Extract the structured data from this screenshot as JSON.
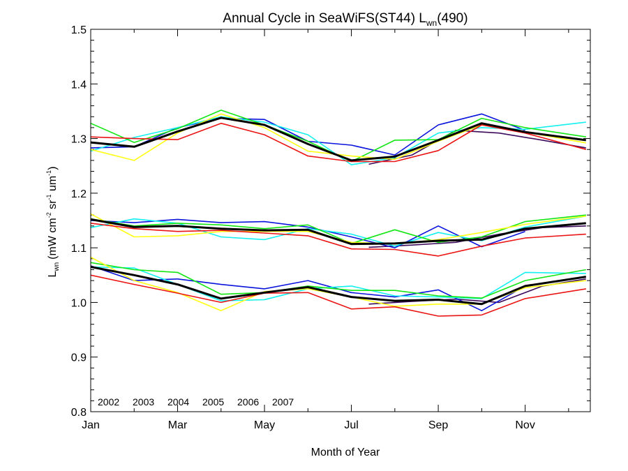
{
  "chart_data": {
    "type": "line",
    "title": {
      "main": "Annual Cycle in SeaWiFS(ST44) L",
      "sub": "wn",
      "tail": "(490)"
    },
    "xlabel": "Month of Year",
    "ylabel": {
      "main": "L",
      "sub": "wn",
      "units": "(mW cm",
      "e1": "-2",
      "u2": " sr",
      "e2": "-1",
      "u3": " um",
      "e3": "-1",
      "close": ")"
    },
    "xlim": [
      1,
      12.5
    ],
    "ylim": [
      0.8,
      1.5
    ],
    "x_ticks": [
      {
        "x": 1,
        "label": "Jan"
      },
      {
        "x": 3,
        "label": "Mar"
      },
      {
        "x": 5,
        "label": "May"
      },
      {
        "x": 7,
        "label": "Jul"
      },
      {
        "x": 9,
        "label": "Sep"
      },
      {
        "x": 11,
        "label": "Nov"
      }
    ],
    "y_ticks": [
      {
        "y": 0.8,
        "label": "0.8"
      },
      {
        "y": 0.9,
        "label": "0.9"
      },
      {
        "y": 1.0,
        "label": "1.0"
      },
      {
        "y": 1.1,
        "label": "1.1"
      },
      {
        "y": 1.2,
        "label": "1.2"
      },
      {
        "y": 1.3,
        "label": "1.3"
      },
      {
        "y": 1.4,
        "label": "1.4"
      },
      {
        "y": 1.5,
        "label": "1.5"
      }
    ],
    "legend_position": "bottom-left",
    "series": [
      {
        "name": "2002",
        "color": "#3c0a5a",
        "bold": false,
        "groups": [
          {
            "x": [
              7.4,
              8.4,
              9.4,
              10.4,
              11.4,
              12.4
            ],
            "y": [
              1.253,
              1.27,
              1.315,
              1.31,
              1.297,
              1.283
            ]
          },
          {
            "x": [
              7.4,
              8.4,
              9.4,
              10.4,
              11.4,
              12.4
            ],
            "y": [
              1.101,
              1.105,
              1.11,
              1.125,
              1.137,
              1.14
            ]
          },
          {
            "x": [
              7.4,
              8.4,
              9.4,
              10.4,
              11.4,
              12.4
            ],
            "y": [
              0.997,
              1.002,
              1.006,
              1.0,
              1.03,
              1.043
            ]
          }
        ]
      },
      {
        "name": "2003",
        "color": "#0a14dc",
        "bold": false,
        "groups": [
          {
            "x": [
              1,
              2,
              3,
              4,
              5,
              6,
              7,
              8,
              9,
              10,
              11
            ],
            "y": [
              1.283,
              1.285,
              1.32,
              1.337,
              1.335,
              1.295,
              1.288,
              1.27,
              1.325,
              1.345,
              1.315
            ]
          },
          {
            "x": [
              1,
              2,
              3,
              4,
              5,
              6,
              7,
              8,
              9,
              10,
              11
            ],
            "y": [
              1.15,
              1.146,
              1.152,
              1.146,
              1.148,
              1.138,
              1.12,
              1.1,
              1.14,
              1.102,
              1.13
            ]
          },
          {
            "x": [
              1,
              2,
              3,
              4,
              5,
              6,
              7,
              8,
              9,
              10,
              11
            ],
            "y": [
              1.067,
              1.04,
              1.043,
              1.033,
              1.025,
              1.04,
              1.018,
              1.01,
              1.023,
              0.985,
              1.03
            ]
          }
        ]
      },
      {
        "name": "2004",
        "color": "#14f0f0",
        "bold": false,
        "groups": [
          {
            "x": [
              1,
              2,
              3,
              4,
              5,
              6,
              7,
              8,
              9,
              10,
              11,
              12.4
            ],
            "y": [
              1.277,
              1.302,
              1.32,
              1.34,
              1.33,
              1.307,
              1.252,
              1.265,
              1.31,
              1.32,
              1.317,
              1.33
            ]
          },
          {
            "x": [
              1,
              2,
              3,
              4,
              5,
              6,
              7,
              8,
              9,
              10,
              11,
              12.4
            ],
            "y": [
              1.137,
              1.153,
              1.145,
              1.12,
              1.115,
              1.135,
              1.125,
              1.103,
              1.128,
              1.113,
              1.138,
              1.158
            ]
          },
          {
            "x": [
              1,
              2,
              3,
              4,
              5,
              6,
              7,
              8,
              9,
              10,
              11,
              12.4
            ],
            "y": [
              1.065,
              1.063,
              1.033,
              1.003,
              1.005,
              1.025,
              1.03,
              1.012,
              1.01,
              1.007,
              1.055,
              1.053
            ]
          }
        ]
      },
      {
        "name": "2005",
        "color": "#14e614",
        "bold": false,
        "groups": [
          {
            "x": [
              1,
              2,
              3,
              4,
              5,
              6,
              7,
              8,
              9,
              10,
              11,
              12.4
            ],
            "y": [
              1.328,
              1.293,
              1.318,
              1.352,
              1.325,
              1.295,
              1.258,
              1.297,
              1.298,
              1.337,
              1.32,
              1.303
            ]
          },
          {
            "x": [
              1,
              2,
              3,
              4,
              5,
              6,
              7,
              8,
              9,
              10,
              11,
              12.4
            ],
            "y": [
              1.153,
              1.14,
              1.145,
              1.142,
              1.135,
              1.142,
              1.108,
              1.133,
              1.11,
              1.12,
              1.148,
              1.16
            ]
          },
          {
            "x": [
              1,
              2,
              3,
              4,
              5,
              6,
              7,
              8,
              9,
              10,
              11,
              12.4
            ],
            "y": [
              1.073,
              1.06,
              1.055,
              1.015,
              1.018,
              1.03,
              1.022,
              1.022,
              1.012,
              1.008,
              1.04,
              1.06
            ]
          }
        ]
      },
      {
        "name": "2006",
        "color": "#ffff14",
        "bold": false,
        "groups": [
          {
            "x": [
              1,
              2,
              3,
              4,
              5,
              6,
              7,
              8,
              9,
              10,
              11,
              12.4
            ],
            "y": [
              1.28,
              1.26,
              1.31,
              1.345,
              1.32,
              1.277,
              1.268,
              1.262,
              1.295,
              1.325,
              1.312,
              1.292
            ]
          },
          {
            "x": [
              1,
              2,
              3,
              4,
              5,
              6,
              7,
              8,
              9,
              10,
              11,
              12.4
            ],
            "y": [
              1.162,
              1.12,
              1.122,
              1.13,
              1.13,
              1.13,
              1.11,
              1.107,
              1.115,
              1.128,
              1.143,
              1.158
            ]
          },
          {
            "x": [
              1,
              2,
              3,
              4,
              5,
              6,
              7,
              8,
              9,
              10,
              11,
              12.4
            ],
            "y": [
              1.083,
              1.04,
              1.018,
              0.985,
              1.02,
              1.025,
              1.01,
              0.993,
              0.997,
              0.997,
              1.027,
              1.04
            ]
          }
        ]
      },
      {
        "name": "2007",
        "color": "#eb1414",
        "bold": false,
        "groups": [
          {
            "x": [
              1,
              2,
              3,
              4,
              5,
              6,
              7,
              8,
              9,
              10,
              11,
              12.4
            ],
            "y": [
              1.303,
              1.3,
              1.298,
              1.328,
              1.307,
              1.268,
              1.258,
              1.258,
              1.278,
              1.325,
              1.31,
              1.28
            ]
          },
          {
            "x": [
              1,
              2,
              3,
              4,
              5,
              6,
              7,
              8,
              9,
              10,
              11,
              12.4
            ],
            "y": [
              1.145,
              1.135,
              1.13,
              1.132,
              1.127,
              1.122,
              1.098,
              1.097,
              1.085,
              1.103,
              1.118,
              1.125
            ]
          },
          {
            "x": [
              1,
              2,
              3,
              4,
              5,
              6,
              7,
              8,
              9,
              10,
              11,
              12.4
            ],
            "y": [
              1.05,
              1.033,
              1.017,
              1.0,
              1.017,
              1.018,
              0.988,
              0.992,
              0.975,
              0.977,
              1.007,
              1.025
            ]
          }
        ]
      },
      {
        "name": "",
        "color": "#000000",
        "bold": true,
        "groups": [
          {
            "x": [
              1,
              2,
              3,
              4,
              5,
              6,
              7,
              8,
              9,
              10,
              11,
              12.4
            ],
            "y": [
              1.293,
              1.285,
              1.313,
              1.338,
              1.325,
              1.29,
              1.26,
              1.267,
              1.297,
              1.328,
              1.312,
              1.297
            ]
          },
          {
            "x": [
              1,
              2,
              3,
              4,
              5,
              6,
              7,
              8,
              9,
              10,
              11,
              12.4
            ],
            "y": [
              1.152,
              1.138,
              1.14,
              1.135,
              1.132,
              1.133,
              1.107,
              1.108,
              1.113,
              1.115,
              1.135,
              1.145
            ]
          },
          {
            "x": [
              1,
              2,
              3,
              4,
              5,
              6,
              7,
              8,
              9,
              10,
              11,
              12.4
            ],
            "y": [
              1.065,
              1.05,
              1.033,
              1.007,
              1.018,
              1.028,
              1.01,
              1.003,
              1.005,
              0.997,
              1.03,
              1.047
            ]
          }
        ]
      }
    ]
  }
}
